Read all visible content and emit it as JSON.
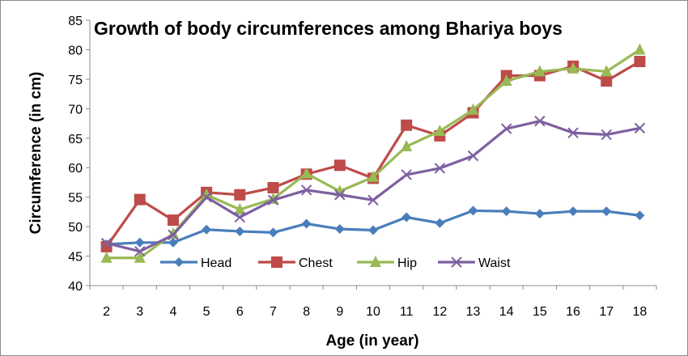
{
  "chart_data": {
    "type": "line",
    "title": "Growth of body circumferences among Bhariya boys",
    "xlabel": "Age (in year)",
    "ylabel": "Circumference (in cm)",
    "x": [
      2,
      3,
      4,
      5,
      6,
      7,
      8,
      9,
      10,
      11,
      12,
      13,
      14,
      15,
      16,
      17,
      18
    ],
    "ylim": [
      40,
      85
    ],
    "yticks": [
      40,
      45,
      50,
      55,
      60,
      65,
      70,
      75,
      80,
      85
    ],
    "grid": false,
    "legend_position": "bottom-left inside plot",
    "series": [
      {
        "name": "Head",
        "color": "#4a7ebb",
        "marker": "diamond",
        "values": [
          47.0,
          47.3,
          47.3,
          49.5,
          49.2,
          49.0,
          50.5,
          49.6,
          49.4,
          51.6,
          50.6,
          52.7,
          52.6,
          52.2,
          52.6,
          52.6,
          51.9
        ]
      },
      {
        "name": "Chest",
        "color": "#be4b48",
        "marker": "square",
        "values": [
          46.6,
          54.6,
          51.1,
          55.8,
          55.4,
          56.6,
          58.9,
          60.4,
          58.2,
          67.2,
          65.4,
          69.3,
          75.6,
          75.6,
          77.2,
          74.7,
          78.0
        ]
      },
      {
        "name": "Hip",
        "color": "#98b954",
        "marker": "triangle",
        "values": [
          44.7,
          44.7,
          48.8,
          55.4,
          52.9,
          54.7,
          59.0,
          56.0,
          58.4,
          63.6,
          66.2,
          69.8,
          74.7,
          76.3,
          76.8,
          76.3,
          80.0
        ]
      },
      {
        "name": "Waist",
        "color": "#7d60a0",
        "marker": "x",
        "values": [
          47.2,
          45.8,
          48.6,
          55.0,
          51.6,
          54.5,
          56.2,
          55.4,
          54.5,
          58.8,
          59.9,
          62.0,
          66.6,
          67.9,
          65.9,
          65.6,
          66.7
        ]
      }
    ]
  }
}
